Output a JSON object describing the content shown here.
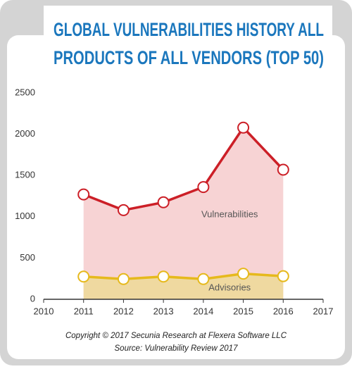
{
  "chart_data": {
    "type": "line",
    "title": [
      "GLOBAL VULNERABILITIES HISTORY ALL",
      "PRODUCTS OF ALL VENDORS (TOP 50)"
    ],
    "x": [
      2011,
      2012,
      2013,
      2014,
      2015,
      2016
    ],
    "series": [
      {
        "name": "Vulnerabilities",
        "color": "#cc1f27",
        "fill": "#f7d3d4",
        "values": [
          1270,
          1080,
          1175,
          1360,
          2080,
          1570
        ]
      },
      {
        "name": "Advisories",
        "color": "#e6b91c",
        "fill": "#efd9a0",
        "values": [
          275,
          245,
          275,
          245,
          310,
          280
        ]
      }
    ],
    "xlim": [
      2010,
      2017
    ],
    "xticks": [
      2010,
      2011,
      2012,
      2013,
      2014,
      2015,
      2016,
      2017
    ],
    "ylim": [
      0,
      2500
    ],
    "yticks": [
      0,
      500,
      1000,
      1500,
      2000,
      2500
    ],
    "notes": [
      "Copyright © 2017 Secunia Research at Flexera Software LLC",
      "Source: Vulnerability Review 2017"
    ]
  }
}
